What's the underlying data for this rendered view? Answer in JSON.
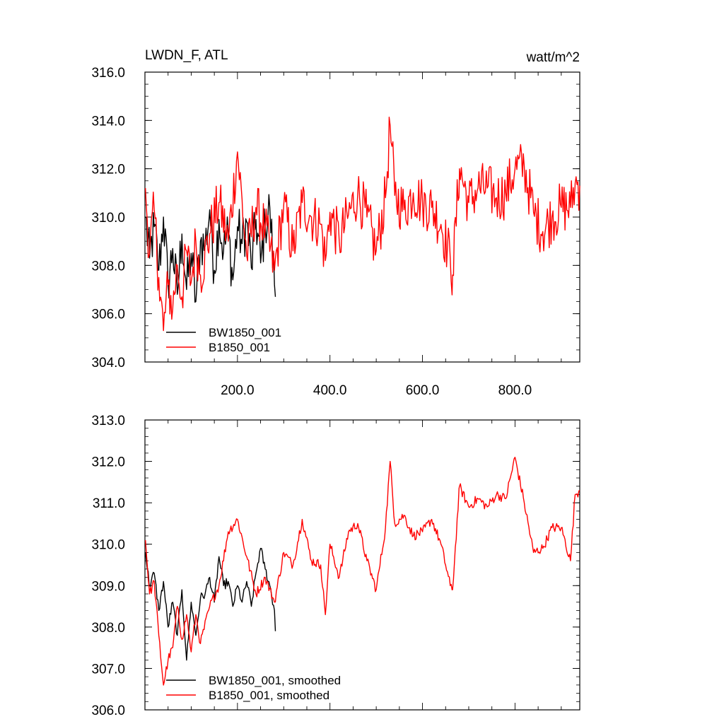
{
  "chart_data": [
    {
      "type": "line",
      "title": "LWDN_F, ATL",
      "units": "watt/m^2",
      "xlim": [
        0,
        940
      ],
      "ylim": [
        304.0,
        316.0
      ],
      "x_ticks": [
        200.0,
        400.0,
        600.0,
        800.0
      ],
      "x_tick_labels": [
        "200.0",
        "400.0",
        "600.0",
        "800.0"
      ],
      "y_ticks": [
        304.0,
        306.0,
        308.0,
        310.0,
        312.0,
        314.0,
        316.0
      ],
      "y_tick_labels": [
        "304.0",
        "306.0",
        "308.0",
        "310.0",
        "312.0",
        "314.0",
        "316.0"
      ],
      "legend_position": "bottom-left",
      "series": [
        {
          "name": "BW1850_001",
          "color": "#000000",
          "x": [
            1,
            10,
            20,
            30,
            40,
            50,
            60,
            70,
            80,
            90,
            100,
            110,
            120,
            130,
            140,
            150,
            160,
            170,
            180,
            190,
            200,
            210,
            220,
            230,
            240,
            250,
            260,
            270,
            280,
            282
          ],
          "y": [
            310.0,
            308.3,
            309.6,
            307.8,
            310.0,
            307.2,
            308.7,
            306.8,
            309.3,
            307.0,
            308.5,
            306.5,
            309.0,
            308.8,
            310.3,
            307.8,
            309.9,
            308.6,
            309.4,
            307.4,
            309.6,
            308.9,
            309.8,
            307.9,
            309.9,
            308.1,
            309.7,
            310.4,
            307.2,
            306.7
          ]
        },
        {
          "name": "B1850_001",
          "color": "#ff0000",
          "x": [
            1,
            10,
            20,
            30,
            40,
            50,
            60,
            70,
            80,
            90,
            100,
            110,
            120,
            140,
            160,
            180,
            200,
            220,
            240,
            260,
            280,
            300,
            320,
            340,
            360,
            380,
            390,
            400,
            420,
            440,
            460,
            480,
            500,
            520,
            530,
            540,
            560,
            580,
            600,
            620,
            640,
            660,
            665,
            680,
            700,
            720,
            740,
            760,
            780,
            800,
            820,
            840,
            860,
            880,
            900,
            920,
            930,
            940
          ],
          "y": [
            311.2,
            308.5,
            310.3,
            307.5,
            305.3,
            307.2,
            306.2,
            308.0,
            306.7,
            308.6,
            307.3,
            309.0,
            307.6,
            309.3,
            310.6,
            309.0,
            312.7,
            308.4,
            310.4,
            309.5,
            307.8,
            310.5,
            308.6,
            310.6,
            310.0,
            309.7,
            308.2,
            310.2,
            309.0,
            310.1,
            311.0,
            310.0,
            308.6,
            310.8,
            313.8,
            310.9,
            310.3,
            311.0,
            310.6,
            310.4,
            309.7,
            308.3,
            307.6,
            312.0,
            310.6,
            311.2,
            311.2,
            310.8,
            311.0,
            312.0,
            312.1,
            310.2,
            309.4,
            310.0,
            310.4,
            310.4,
            311.4,
            311.3
          ]
        }
      ]
    },
    {
      "type": "line",
      "title": "",
      "xlim": [
        0,
        940
      ],
      "ylim": [
        306.0,
        313.0
      ],
      "y_ticks": [
        306.0,
        307.0,
        308.0,
        309.0,
        310.0,
        311.0,
        312.0,
        313.0
      ],
      "y_tick_labels": [
        "306.0",
        "307.0",
        "308.0",
        "309.0",
        "310.0",
        "311.0",
        "312.0",
        "313.0"
      ],
      "legend_position": "bottom-left",
      "series": [
        {
          "name": "BW1850_001, smoothed",
          "color": "#000000",
          "x": [
            1,
            10,
            20,
            30,
            40,
            50,
            60,
            70,
            80,
            90,
            100,
            110,
            120,
            130,
            140,
            150,
            160,
            170,
            180,
            190,
            200,
            210,
            220,
            230,
            240,
            250,
            260,
            270,
            280,
            282
          ],
          "y": [
            309.8,
            309.0,
            309.3,
            308.4,
            309.1,
            308.0,
            308.6,
            307.8,
            308.9,
            307.2,
            308.6,
            307.8,
            308.7,
            308.8,
            309.2,
            308.6,
            309.7,
            309.0,
            309.1,
            308.5,
            309.0,
            308.6,
            309.1,
            308.5,
            309.3,
            309.9,
            309.4,
            309.0,
            308.4,
            307.9
          ]
        },
        {
          "name": "B1850_001, smoothed",
          "color": "#ff0000",
          "x": [
            1,
            10,
            20,
            30,
            40,
            50,
            60,
            70,
            80,
            90,
            100,
            110,
            120,
            140,
            160,
            180,
            200,
            220,
            240,
            260,
            280,
            300,
            320,
            340,
            360,
            380,
            390,
            400,
            420,
            440,
            460,
            480,
            500,
            520,
            530,
            540,
            560,
            580,
            600,
            620,
            640,
            660,
            665,
            680,
            700,
            720,
            740,
            760,
            780,
            800,
            820,
            840,
            860,
            880,
            900,
            920,
            930,
            940
          ],
          "y": [
            310.1,
            308.8,
            309.1,
            307.8,
            306.6,
            307.2,
            307.5,
            308.5,
            307.7,
            308.3,
            307.4,
            308.3,
            307.6,
            308.5,
            309.0,
            310.3,
            310.6,
            309.7,
            308.8,
            309.2,
            308.6,
            309.8,
            309.5,
            310.6,
            309.6,
            309.5,
            308.3,
            310.0,
            309.2,
            310.3,
            310.5,
            309.6,
            308.9,
            310.4,
            312.0,
            310.5,
            310.7,
            310.2,
            310.3,
            310.6,
            310.0,
            309.0,
            308.9,
            311.4,
            310.9,
            311.1,
            310.9,
            311.2,
            311.1,
            312.1,
            311.0,
            309.8,
            309.9,
            310.4,
            310.4,
            309.6,
            311.2,
            311.3
          ]
        }
      ]
    }
  ]
}
